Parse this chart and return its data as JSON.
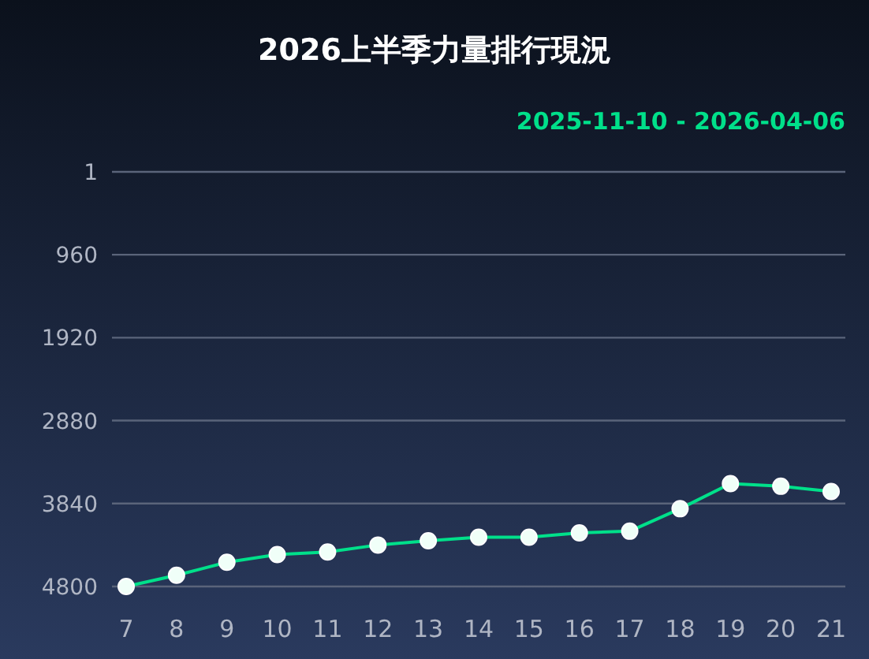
{
  "chart_data": {
    "type": "line",
    "title": "2026上半季力量排行現況",
    "annotations": [
      "2025-11-10 - 2026-04-06"
    ],
    "categories": [
      "7",
      "8",
      "9",
      "10",
      "11",
      "12",
      "13",
      "14",
      "15",
      "16",
      "17",
      "18",
      "19",
      "20",
      "21"
    ],
    "series": [
      {
        "color": "#00e08a",
        "values": [
          4800,
          4670,
          4520,
          4430,
          4400,
          4320,
          4270,
          4230,
          4230,
          4180,
          4160,
          3900,
          3610,
          3640,
          3700
        ]
      }
    ],
    "ylim": [
      4800,
      1
    ],
    "yticks": [
      1,
      960,
      1920,
      2880,
      3840,
      4800
    ],
    "grid": "y",
    "marker": "circle",
    "line_style": "solid"
  }
}
